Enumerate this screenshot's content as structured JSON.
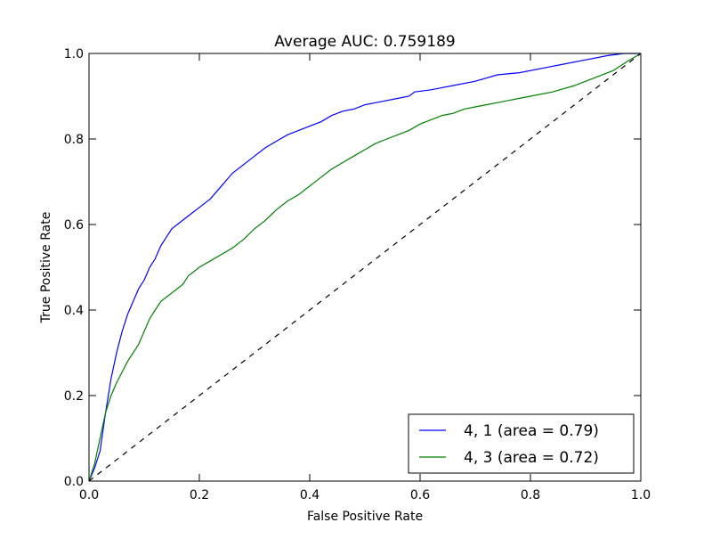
{
  "chart_data": {
    "type": "line",
    "title": "Average AUC: 0.759189",
    "xlabel": "False Positive Rate",
    "ylabel": "True Positive Rate",
    "xlim": [
      0.0,
      1.0
    ],
    "ylim": [
      0.0,
      1.0
    ],
    "xticks": [
      "0.0",
      "0.2",
      "0.4",
      "0.6",
      "0.8",
      "1.0"
    ],
    "yticks": [
      "0.0",
      "0.2",
      "0.4",
      "0.6",
      "0.8",
      "1.0"
    ],
    "grid": false,
    "legend_position": "lower-right",
    "series": [
      {
        "name": "4, 1 (area = 0.79)",
        "color": "#0000ff",
        "x": [
          0.0,
          0.01,
          0.02,
          0.03,
          0.04,
          0.05,
          0.06,
          0.07,
          0.08,
          0.09,
          0.1,
          0.11,
          0.12,
          0.13,
          0.14,
          0.15,
          0.16,
          0.18,
          0.2,
          0.22,
          0.24,
          0.26,
          0.28,
          0.3,
          0.32,
          0.34,
          0.36,
          0.38,
          0.4,
          0.42,
          0.44,
          0.46,
          0.48,
          0.5,
          0.52,
          0.54,
          0.56,
          0.58,
          0.59,
          0.62,
          0.66,
          0.7,
          0.74,
          0.78,
          0.82,
          0.86,
          0.9,
          0.94,
          0.97,
          1.0
        ],
        "y": [
          0.0,
          0.03,
          0.07,
          0.16,
          0.24,
          0.3,
          0.35,
          0.39,
          0.42,
          0.45,
          0.47,
          0.5,
          0.52,
          0.55,
          0.57,
          0.59,
          0.6,
          0.62,
          0.64,
          0.66,
          0.69,
          0.72,
          0.74,
          0.76,
          0.78,
          0.795,
          0.81,
          0.82,
          0.83,
          0.84,
          0.855,
          0.865,
          0.87,
          0.88,
          0.885,
          0.89,
          0.895,
          0.9,
          0.91,
          0.915,
          0.925,
          0.935,
          0.95,
          0.955,
          0.965,
          0.975,
          0.985,
          0.995,
          1.0,
          1.0
        ]
      },
      {
        "name": "4, 3 (area = 0.72)",
        "color": "#008000",
        "x": [
          0.0,
          0.01,
          0.02,
          0.03,
          0.04,
          0.05,
          0.06,
          0.07,
          0.08,
          0.09,
          0.1,
          0.11,
          0.12,
          0.13,
          0.14,
          0.15,
          0.16,
          0.17,
          0.18,
          0.2,
          0.22,
          0.24,
          0.26,
          0.28,
          0.3,
          0.32,
          0.34,
          0.36,
          0.38,
          0.4,
          0.42,
          0.44,
          0.46,
          0.48,
          0.5,
          0.52,
          0.54,
          0.56,
          0.58,
          0.6,
          0.62,
          0.64,
          0.66,
          0.68,
          0.7,
          0.72,
          0.74,
          0.76,
          0.78,
          0.8,
          0.84,
          0.88,
          0.92,
          0.95,
          0.98,
          1.0
        ],
        "y": [
          0.0,
          0.04,
          0.1,
          0.16,
          0.2,
          0.23,
          0.255,
          0.28,
          0.3,
          0.32,
          0.35,
          0.38,
          0.4,
          0.42,
          0.43,
          0.44,
          0.45,
          0.46,
          0.48,
          0.5,
          0.515,
          0.53,
          0.545,
          0.565,
          0.59,
          0.61,
          0.635,
          0.655,
          0.67,
          0.69,
          0.71,
          0.73,
          0.745,
          0.76,
          0.775,
          0.79,
          0.8,
          0.81,
          0.82,
          0.835,
          0.845,
          0.855,
          0.86,
          0.87,
          0.875,
          0.88,
          0.885,
          0.89,
          0.895,
          0.9,
          0.91,
          0.925,
          0.945,
          0.96,
          0.985,
          1.0
        ]
      },
      {
        "name": "",
        "color": "#000000",
        "dashed": true,
        "x": [
          0.0,
          1.0
        ],
        "y": [
          0.0,
          1.0
        ]
      }
    ]
  }
}
